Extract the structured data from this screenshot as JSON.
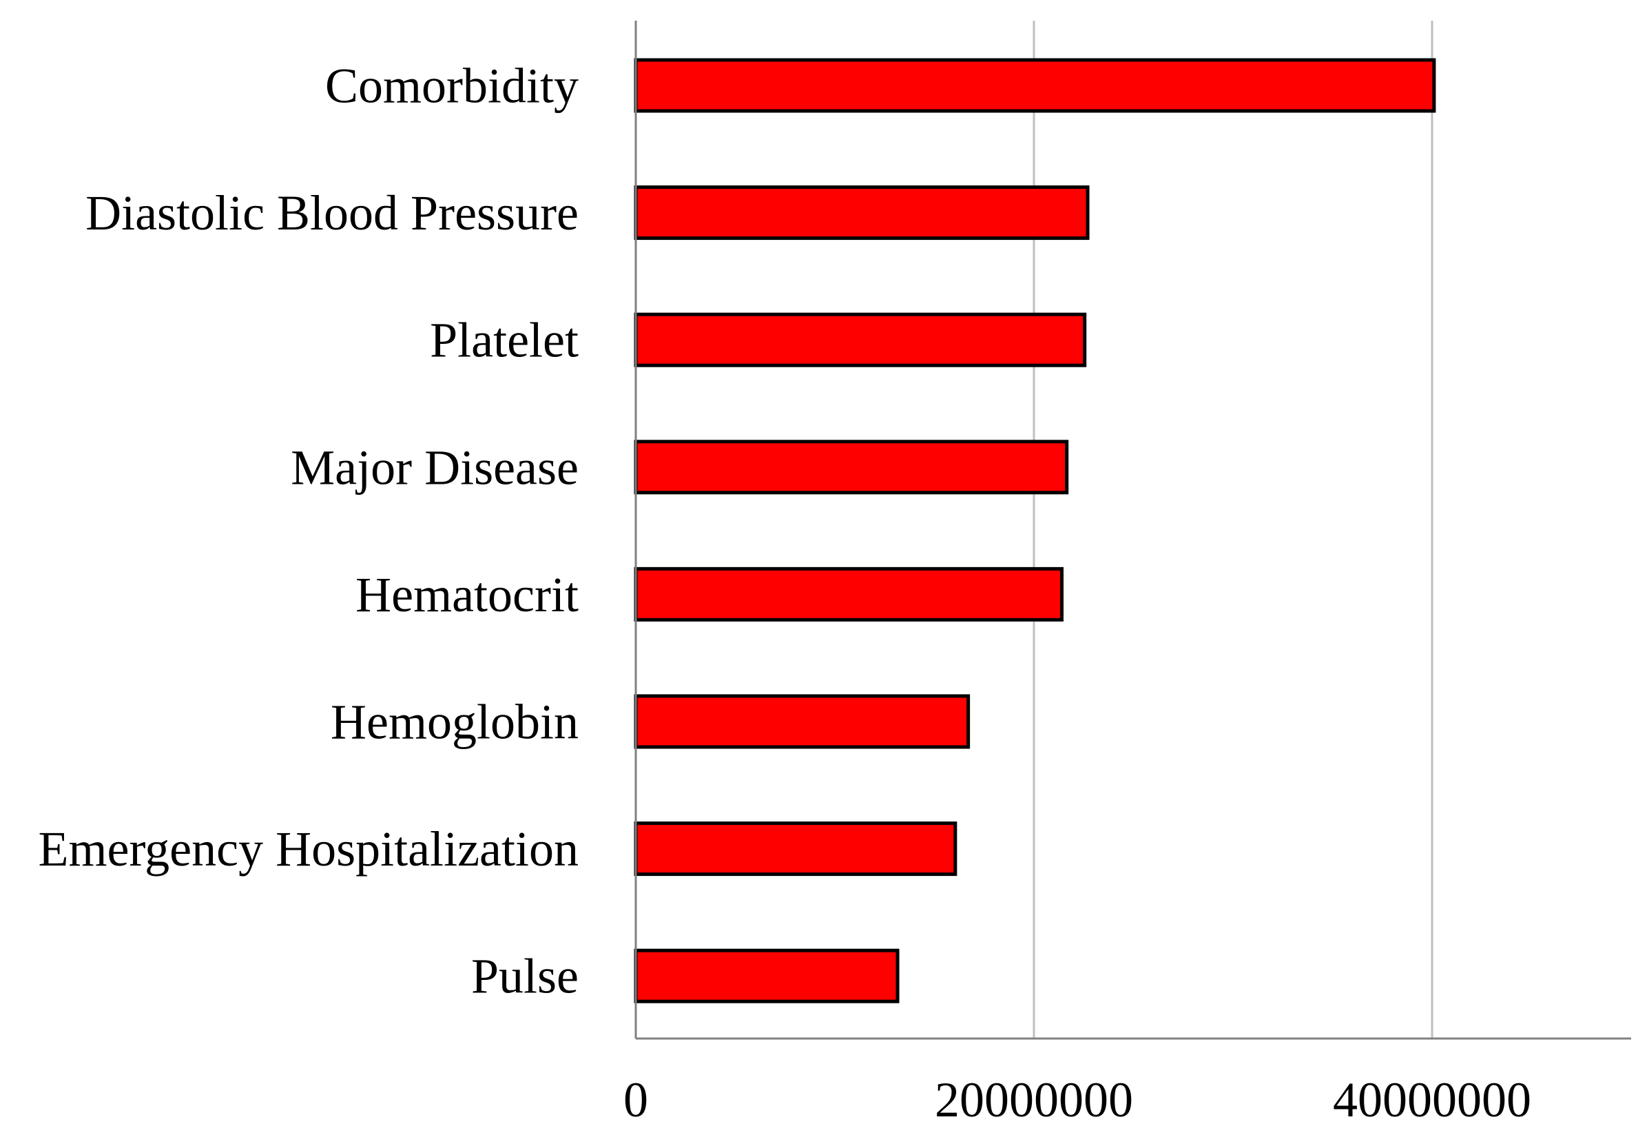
{
  "chart_data": {
    "type": "bar",
    "orientation": "horizontal",
    "title": "",
    "xlabel": "",
    "ylabel": "",
    "categories": [
      "Comorbidity",
      "Diastolic Blood Pressure",
      "Platelet",
      "Major Disease",
      "Hematocrit",
      "Hemoglobin",
      "Emergency Hospitalization",
      "Pulse"
    ],
    "values": [
      40100000,
      22700000,
      22550000,
      21650000,
      21400000,
      16700000,
      16050000,
      13150000
    ],
    "xlim": [
      0,
      50000000
    ],
    "x_ticks": [
      0,
      20000000,
      40000000
    ],
    "x_tick_labels": [
      "0",
      "20000000",
      "40000000"
    ],
    "grid": "vertical",
    "legend": "none",
    "colors": {
      "bar_fill": "#ff0000",
      "bar_stroke": "#000000",
      "grid": "#bfbfbf",
      "axis": "#808080"
    }
  }
}
